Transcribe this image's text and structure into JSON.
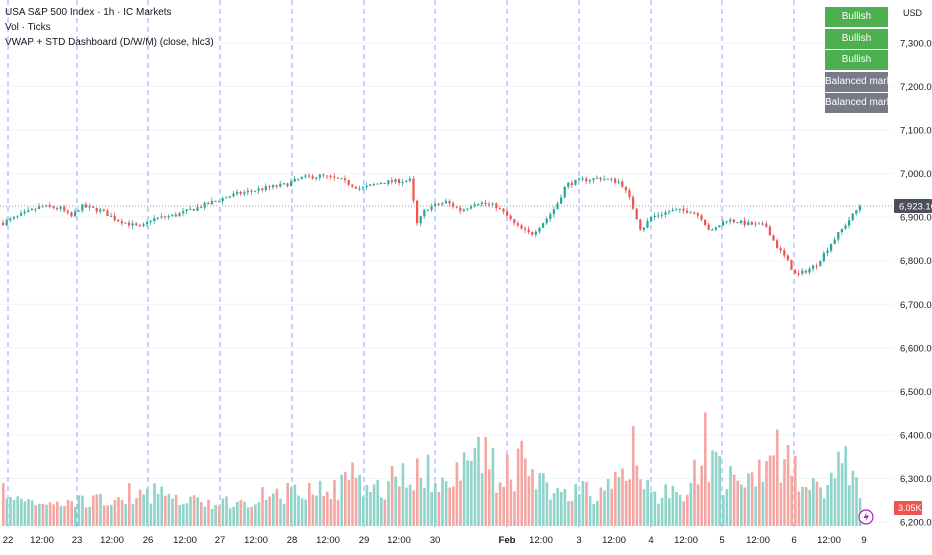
{
  "legend": {
    "symbol_line": "USA S&P 500 Index · 1h · IC Markets",
    "volume_line": "Vol · Ticks",
    "indicator_line": "VWAP + STD Dashboard (D/W/M) (close, hlc3)"
  },
  "price_axis": {
    "currency": "USD",
    "ticks": [
      "7,300.00",
      "7,200.00",
      "7,100.00",
      "7,000.00",
      "6,900.00",
      "6,800.00",
      "6,700.00",
      "6,600.00",
      "6,500.00",
      "6,400.00",
      "6,300.00",
      "6,200.00"
    ],
    "last_price_label": "6,923.10",
    "volume_label": "3.05K"
  },
  "time_axis": {
    "labels": [
      "22",
      "12:00",
      "23",
      "12:00",
      "26",
      "12:00",
      "27",
      "12:00",
      "28",
      "12:00",
      "29",
      "12:00",
      "30",
      "Feb",
      "12:00",
      "3",
      "12:00",
      "4",
      "12:00",
      "5",
      "12:00",
      "6",
      "12:00",
      "9"
    ]
  },
  "dashboard": {
    "cells": [
      {
        "label": "Bullish",
        "color": "#4caf50"
      },
      {
        "label": "Bullish",
        "color": "#4caf50"
      },
      {
        "label": "Bullish",
        "color": "#4caf50"
      },
      {
        "label": "Balanced market",
        "color": "#787b86"
      },
      {
        "label": "Balanced market",
        "color": "#787b86"
      }
    ]
  },
  "colors": {
    "up": "#26a69a",
    "down": "#ef5350",
    "volume_up": "#8fd3c9",
    "volume_down": "#f4a6a3",
    "price_badge": "#4b4f58",
    "volume_badge": "#ef5350",
    "session_line": "#2962ff"
  },
  "chart_data": {
    "type": "candlestick",
    "y_price_range": [
      6180,
      7360
    ],
    "x": [
      "22",
      "12:00",
      "23",
      "12:00",
      "26",
      "12:00",
      "27",
      "12:00",
      "28",
      "12:00",
      "29",
      "12:00",
      "30",
      "Feb",
      "12:00",
      "3",
      "12:00",
      "4",
      "12:00",
      "5",
      "12:00",
      "6",
      "12:00",
      "9"
    ],
    "close_path": [
      [
        0,
        6885
      ],
      [
        40,
        6925
      ],
      [
        60,
        6920
      ],
      [
        70,
        6900
      ],
      [
        80,
        6925
      ],
      [
        100,
        6915
      ],
      [
        115,
        6895
      ],
      [
        140,
        6875
      ],
      [
        150,
        6895
      ],
      [
        175,
        6905
      ],
      [
        200,
        6925
      ],
      [
        230,
        6950
      ],
      [
        260,
        6965
      ],
      [
        285,
        6975
      ],
      [
        300,
        6990
      ],
      [
        320,
        6995
      ],
      [
        340,
        6985
      ],
      [
        360,
        6965
      ],
      [
        380,
        6980
      ],
      [
        410,
        6985
      ],
      [
        415,
        6880
      ],
      [
        425,
        6920
      ],
      [
        445,
        6935
      ],
      [
        460,
        6915
      ],
      [
        475,
        6935
      ],
      [
        495,
        6925
      ],
      [
        505,
        6905
      ],
      [
        515,
        6880
      ],
      [
        530,
        6860
      ],
      [
        545,
        6895
      ],
      [
        555,
        6925
      ],
      [
        565,
        6975
      ],
      [
        580,
        6985
      ],
      [
        600,
        6990
      ],
      [
        620,
        6980
      ],
      [
        630,
        6935
      ],
      [
        640,
        6870
      ],
      [
        650,
        6900
      ],
      [
        670,
        6915
      ],
      [
        690,
        6915
      ],
      [
        700,
        6900
      ],
      [
        710,
        6865
      ],
      [
        725,
        6895
      ],
      [
        745,
        6885
      ],
      [
        765,
        6880
      ],
      [
        775,
        6835
      ],
      [
        785,
        6805
      ],
      [
        795,
        6765
      ],
      [
        815,
        6790
      ],
      [
        830,
        6840
      ],
      [
        845,
        6885
      ],
      [
        860,
        6930
      ]
    ],
    "volume_profile": [
      [
        0,
        6305
      ],
      [
        40,
        6245
      ],
      [
        110,
        6280
      ],
      [
        150,
        6305
      ],
      [
        180,
        6265
      ],
      [
        220,
        6255
      ],
      [
        260,
        6285
      ],
      [
        330,
        6300
      ],
      [
        355,
        6370
      ],
      [
        380,
        6290
      ],
      [
        410,
        6400
      ],
      [
        445,
        6310
      ],
      [
        480,
        6435
      ],
      [
        500,
        6330
      ],
      [
        515,
        6400
      ],
      [
        545,
        6340
      ],
      [
        560,
        6280
      ],
      [
        590,
        6300
      ],
      [
        620,
        6320
      ],
      [
        630,
        6435
      ],
      [
        650,
        6290
      ],
      [
        690,
        6310
      ],
      [
        705,
        6470
      ],
      [
        725,
        6330
      ],
      [
        750,
        6350
      ],
      [
        770,
        6435
      ],
      [
        790,
        6370
      ],
      [
        810,
        6300
      ],
      [
        830,
        6320
      ],
      [
        845,
        6470
      ],
      [
        860,
        6250
      ]
    ]
  }
}
